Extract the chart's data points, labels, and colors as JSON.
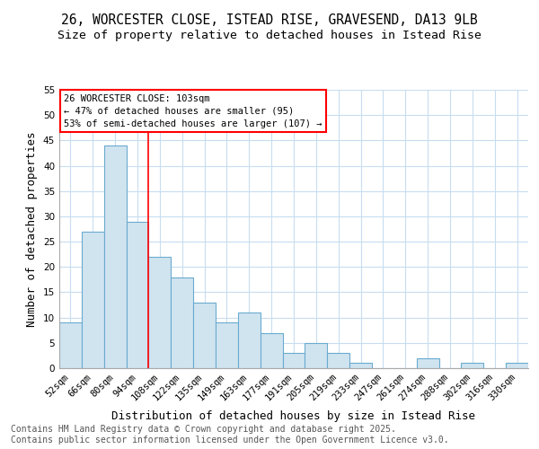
{
  "title_line1": "26, WORCESTER CLOSE, ISTEAD RISE, GRAVESEND, DA13 9LB",
  "title_line2": "Size of property relative to detached houses in Istead Rise",
  "xlabel": "Distribution of detached houses by size in Istead Rise",
  "ylabel": "Number of detached properties",
  "categories": [
    "52sqm",
    "66sqm",
    "80sqm",
    "94sqm",
    "108sqm",
    "122sqm",
    "135sqm",
    "149sqm",
    "163sqm",
    "177sqm",
    "191sqm",
    "205sqm",
    "219sqm",
    "233sqm",
    "247sqm",
    "261sqm",
    "274sqm",
    "288sqm",
    "302sqm",
    "316sqm",
    "330sqm"
  ],
  "values": [
    9,
    27,
    44,
    29,
    22,
    18,
    13,
    9,
    11,
    7,
    3,
    5,
    3,
    1,
    0,
    0,
    2,
    0,
    1,
    0,
    1
  ],
  "bar_color": "#d0e4f0",
  "bar_edge_color": "#6aabce",
  "grid_color": "#c8ddf0",
  "background_color": "#ffffff",
  "red_line_index": 4,
  "annotation_title": "26 WORCESTER CLOSE: 103sqm",
  "annotation_line2": "← 47% of detached houses are smaller (95)",
  "annotation_line3": "53% of semi-detached houses are larger (107) →",
  "annotation_box_color": "white",
  "annotation_box_edge": "red",
  "ylim": [
    0,
    55
  ],
  "yticks": [
    0,
    5,
    10,
    15,
    20,
    25,
    30,
    35,
    40,
    45,
    50,
    55
  ],
  "footer_line1": "Contains HM Land Registry data © Crown copyright and database right 2025.",
  "footer_line2": "Contains public sector information licensed under the Open Government Licence v3.0.",
  "title_fontsize": 10.5,
  "subtitle_fontsize": 9.5,
  "axis_label_fontsize": 9,
  "tick_fontsize": 7.5,
  "annotation_fontsize": 7.5,
  "footer_fontsize": 7
}
